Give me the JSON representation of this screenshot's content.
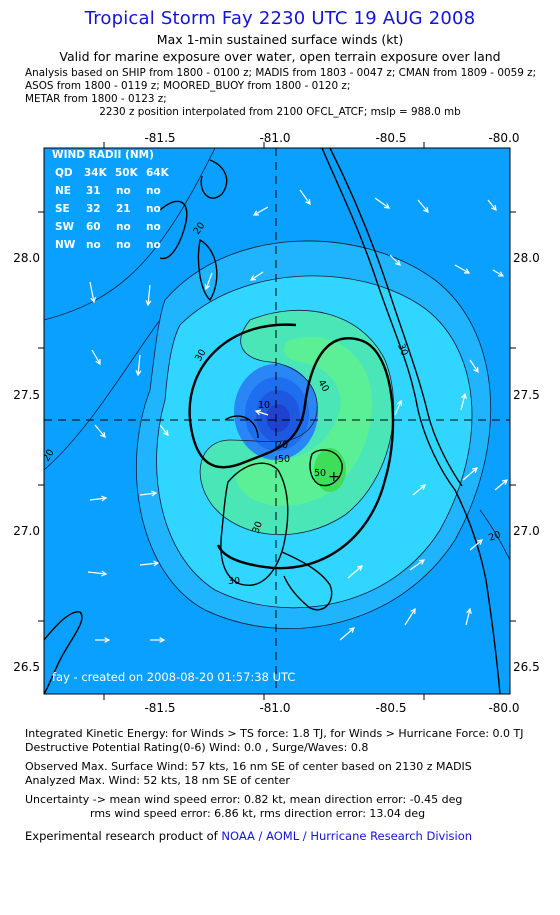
{
  "header": {
    "title": "Tropical Storm Fay 2230 UTC 19 AUG 2008",
    "subtitle": "Max 1-min sustained surface winds (kt)",
    "valid": "Valid for marine exposure over water, open terrain exposure over land",
    "analysis_lines": [
      "Analysis based on  SHIP from 1800 - 0100 z;  MADIS from 1803 - 0047 z;  CMAN from 1809 - 0059 z;",
      "ASOS from 1800 - 0119 z;  MOORED_BUOY from 1800 - 0120 z;",
      "METAR from 1800 - 0123 z;"
    ],
    "interp_note": "2230 z position interpolated from 2100 OFCL_ATCF; mslp = 988.0 mb"
  },
  "map": {
    "lon_ticks": [
      "-81.5",
      "-81.0",
      "-80.5",
      "-80.0"
    ],
    "lat_ticks": [
      "28.0",
      "27.5",
      "27.0",
      "26.5"
    ],
    "lon_range": [
      -81.85,
      -80.02
    ],
    "lat_range": [
      26.4,
      28.45
    ],
    "center": {
      "lon": -80.98,
      "lat": 27.4
    },
    "contour_labels": [
      "20",
      "20",
      "20",
      "30",
      "30",
      "40",
      "50",
      "50",
      "10",
      "30",
      "20",
      "30"
    ],
    "wind_radii": {
      "title": "WIND RADII (NM)",
      "header": [
        "QD",
        "34K",
        "50K",
        "64K"
      ],
      "rows": [
        [
          "NE",
          "31",
          "no",
          "no"
        ],
        [
          "SE",
          "32",
          "21",
          "no"
        ],
        [
          "SW",
          "60",
          "no",
          "no"
        ],
        [
          "NW",
          "no",
          "no",
          "no"
        ]
      ]
    },
    "created": "fay - created on 2008-08-20 01:57:38 UTC",
    "colors": {
      "background": "#0aa0ff",
      "ring_light": "#20b4ff",
      "ring_cyan": "#30d6ff",
      "green_light": "#4ae6b8",
      "green": "#5cf096",
      "green_peak": "#3ede58",
      "calm_blue": "#1e6ef0",
      "calm_deep": "#2040d0"
    }
  },
  "footer": {
    "ike": "Integrated Kinetic Energy:  for Winds > TS force: 1.8 TJ,  for Winds > Hurricane Force: 0.0 TJ",
    "dpr": "Destructive Potential Rating(0-6)   Wind: 0.0 , Surge/Waves: 0.8",
    "observed": "Observed Max. Surface Wind: 57 kts, 16 nm SE of center based on 2130 z MADIS",
    "analyzed": "Analyzed Max. Wind: 52 kts, 18 nm SE of center",
    "uncertainty1": "Uncertainty -> mean wind speed error: 0.82 kt,   mean direction error:  -0.45 deg",
    "uncertainty2": "rms wind speed error: 6.86 kt,   rms direction error: 13.04 deg",
    "credit_prefix": "Experimental research product of ",
    "credit_link": "NOAA / AOML / Hurricane Research Division"
  }
}
